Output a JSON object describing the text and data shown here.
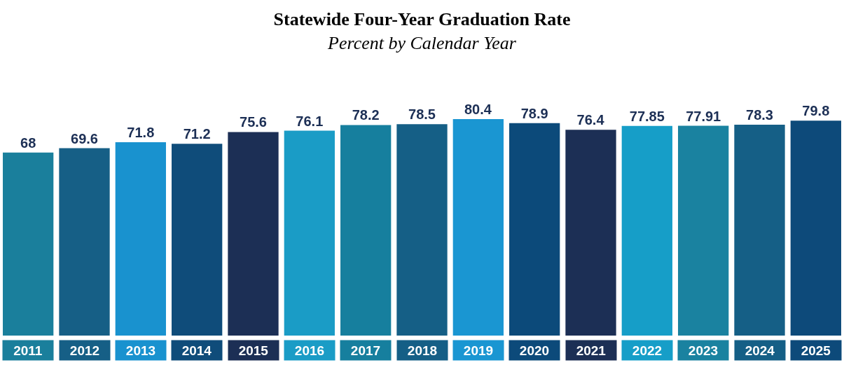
{
  "chart_data": {
    "type": "bar",
    "title": "Statewide Four-Year Graduation Rate",
    "subtitle": "Percent by Calendar Year",
    "categories": [
      "2011",
      "2012",
      "2013",
      "2014",
      "2015",
      "2016",
      "2017",
      "2018",
      "2019",
      "2020",
      "2021",
      "2022",
      "2023",
      "2024",
      "2025"
    ],
    "values": [
      68,
      69.6,
      71.8,
      71.2,
      75.6,
      76.1,
      78.2,
      78.5,
      80.4,
      78.9,
      76.4,
      77.85,
      77.91,
      78.3,
      79.8
    ],
    "colors": [
      "#1a7f9c",
      "#165f86",
      "#1992cf",
      "#0f4c7a",
      "#1c2f55",
      "#1a9cc6",
      "#167f9e",
      "#155f86",
      "#1a96d2",
      "#0c4a7a",
      "#1c2f55",
      "#169ec8",
      "#1a82a0",
      "#155f86",
      "#0d4a7a"
    ],
    "data_labels": true
  }
}
